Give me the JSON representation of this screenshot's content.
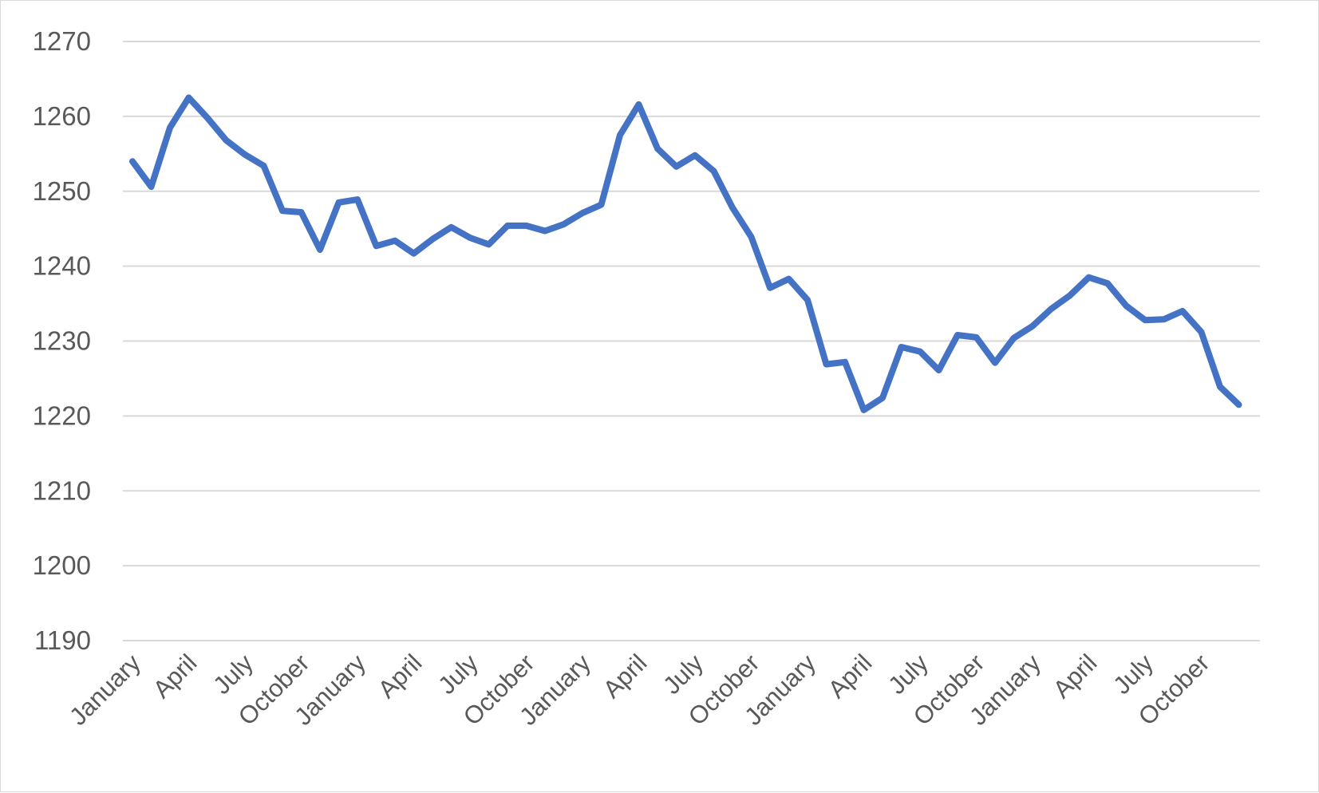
{
  "chart_data": {
    "type": "line",
    "title": "",
    "xlabel": "",
    "ylabel": "",
    "ylim": [
      1190,
      1270
    ],
    "yticks": [
      1190,
      1200,
      1210,
      1220,
      1230,
      1240,
      1250,
      1260,
      1270
    ],
    "grid": true,
    "legend": "none",
    "x": [
      "January",
      "February",
      "March",
      "April",
      "May",
      "June",
      "July",
      "August",
      "September",
      "October",
      "November",
      "December",
      "January",
      "February",
      "March",
      "April",
      "May",
      "June",
      "July",
      "August",
      "September",
      "October",
      "November",
      "December",
      "January",
      "February",
      "March",
      "April",
      "May",
      "June",
      "July",
      "August",
      "September",
      "October",
      "November",
      "December",
      "January",
      "February",
      "March",
      "April",
      "May",
      "June",
      "July",
      "August",
      "September",
      "October",
      "November",
      "December",
      "January",
      "February",
      "March",
      "April",
      "May",
      "June",
      "July",
      "August",
      "September",
      "October",
      "November",
      "December"
    ],
    "xtick_labels_shown": [
      "January",
      "April",
      "July",
      "October",
      "January",
      "April",
      "July",
      "October",
      "January",
      "April",
      "July",
      "October",
      "January",
      "April",
      "July",
      "October",
      "January",
      "April",
      "July",
      "October"
    ],
    "series": [
      {
        "color": "#4472c4",
        "values": [
          1254.0,
          1250.6,
          1258.5,
          1262.5,
          1259.8,
          1256.8,
          1254.9,
          1253.4,
          1247.4,
          1247.2,
          1242.2,
          1248.5,
          1248.9,
          1242.7,
          1243.4,
          1241.7,
          1243.6,
          1245.2,
          1243.8,
          1242.9,
          1245.4,
          1245.4,
          1244.7,
          1245.6,
          1247.1,
          1248.2,
          1257.5,
          1261.6,
          1255.7,
          1253.3,
          1254.8,
          1252.7,
          1247.8,
          1243.9,
          1237.1,
          1238.3,
          1235.5,
          1226.9,
          1227.2,
          1220.8,
          1222.4,
          1229.2,
          1228.6,
          1226.1,
          1230.8,
          1230.5,
          1227.1,
          1230.4,
          1232.0,
          1234.3,
          1236.1,
          1238.5,
          1237.7,
          1234.7,
          1232.8,
          1232.9,
          1234.0,
          1231.2,
          1223.9,
          1221.5
        ]
      }
    ]
  }
}
